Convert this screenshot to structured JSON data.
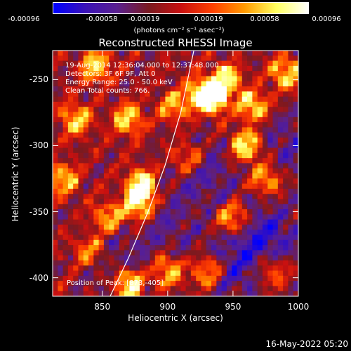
{
  "colorbar": {
    "ticks": [
      "-0.00096",
      "-0.00058",
      "-0.00019",
      "0.00019",
      "0.00058",
      "0.00096"
    ],
    "units_label": "(photons cm⁻² s⁻¹ asec⁻²)",
    "colors": [
      "#0000ff",
      "#3a12b8",
      "#5a2090",
      "#7a1a20",
      "#c81010",
      "#ff4000",
      "#ff9a00",
      "#ffff60",
      "#ffffff"
    ]
  },
  "chart_data": {
    "type": "heatmap",
    "title": "Reconstructed RHESSI Image",
    "xlabel": "Heliocentric X (arcsec)",
    "ylabel": "Heliocentric Y (arcsec)",
    "xlim": [
      812,
      1000
    ],
    "ylim": [
      -414,
      -228
    ],
    "xticks": [
      850,
      900,
      950,
      1000
    ],
    "yticks": [
      -250,
      -300,
      -350,
      -400
    ],
    "info_lines": [
      "19-Aug-2014 12:36:04.000 to 12:37:48.000",
      "Detectors: 3F 6F 9F, Att 0",
      "Energy Range: 25.0 - 50.0 keV",
      "Clean    Total counts: 766."
    ],
    "peak_label": "Position of Peak: [873,-405]",
    "peak": [
      873,
      -405
    ],
    "limb_curve": [
      [
        856,
        -414
      ],
      [
        870,
        -385
      ],
      [
        885,
        -350
      ],
      [
        898,
        -315
      ],
      [
        910,
        -275
      ],
      [
        920,
        -228
      ]
    ],
    "bright_spots": [
      [
        880,
        -330,
        0.98
      ],
      [
        878,
        -345,
        0.9
      ],
      [
        870,
        -405,
        1.0
      ],
      [
        935,
        -265,
        0.95
      ],
      [
        960,
        -300,
        0.9
      ],
      [
        945,
        -250,
        0.85
      ],
      [
        925,
        -260,
        0.8
      ],
      [
        950,
        -355,
        0.75
      ],
      [
        830,
        -280,
        0.7
      ],
      [
        845,
        -240,
        0.8
      ],
      [
        870,
        -280,
        0.75
      ],
      [
        820,
        -325,
        0.7
      ],
      [
        975,
        -325,
        0.7
      ],
      [
        990,
        -245,
        0.75
      ],
      [
        930,
        -395,
        0.7
      ],
      [
        980,
        -395,
        0.6
      ],
      [
        855,
        -355,
        0.65
      ],
      [
        905,
        -270,
        0.6
      ],
      [
        965,
        -270,
        0.8
      ],
      [
        900,
        -395,
        0.7
      ],
      [
        840,
        -380,
        0.6
      ],
      [
        915,
        -310,
        0.55
      ]
    ],
    "dim_regions": [
      [
        975,
        -370,
        0.9
      ],
      [
        930,
        -320,
        0.6
      ],
      [
        860,
        -390,
        0.5
      ],
      [
        995,
        -300,
        0.6
      ],
      [
        900,
        -360,
        0.5
      ],
      [
        950,
        -395,
        0.6
      ]
    ]
  },
  "footer": {
    "timestamp": "16-May-2022 05:20"
  }
}
